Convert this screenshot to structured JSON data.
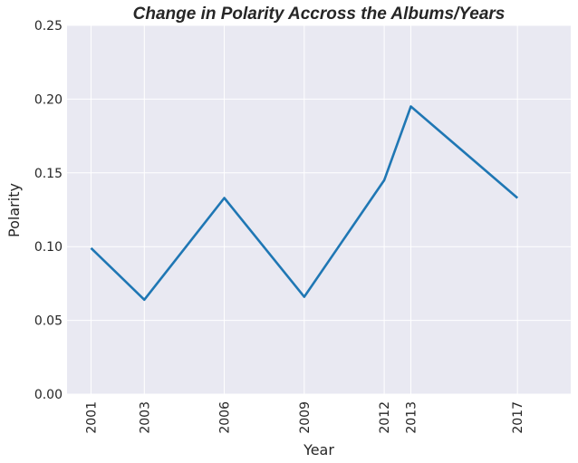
{
  "chart_data": {
    "type": "line",
    "title": "Change in Polarity Accross the Albums/Years",
    "xlabel": "Year",
    "ylabel": "Polarity",
    "x": [
      2001,
      2003,
      2006,
      2009,
      2012,
      2013,
      2017
    ],
    "x_ticks": [
      "2001",
      "2003",
      "2006",
      "2009",
      "2012",
      "2013",
      "2017"
    ],
    "y_ticks": [
      "0.00",
      "0.05",
      "0.10",
      "0.15",
      "0.20",
      "0.25"
    ],
    "ylim": [
      0,
      0.25
    ],
    "xlim": [
      2000.1,
      2019.0
    ],
    "grid": true,
    "background_color": "#e9e9f2",
    "series": [
      {
        "color": "#1f77b4",
        "values": [
          0.099,
          0.064,
          0.133,
          0.066,
          0.145,
          0.195,
          0.133
        ]
      }
    ]
  }
}
